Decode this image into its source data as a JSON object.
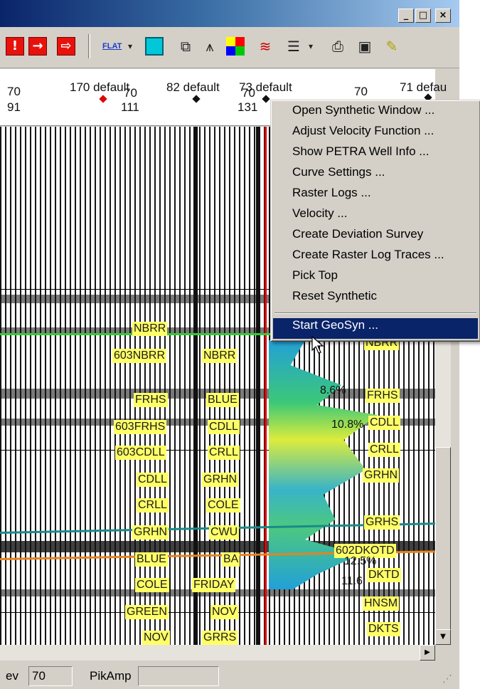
{
  "window": {
    "buttons": {
      "minimize": "_",
      "maximize": "□",
      "close": "×"
    }
  },
  "toolbar": {
    "flat_label": "FLAT",
    "icons": [
      "stop-red-icon",
      "arrow-right-red-icon",
      "arrow-right-red-icon",
      "flat-icon",
      "dropdown-icon",
      "cyan-square-icon",
      "windows-icon",
      "tower-icon",
      "color-palette-icon",
      "horizons-icon",
      "list-icon",
      "printer-icon",
      "save-icon",
      "ruler-icon"
    ]
  },
  "header": {
    "well_labels": [
      "170 default",
      "82 default",
      "73 default",
      "71 defau"
    ],
    "row1_numbers": [
      "70",
      "70",
      "70",
      "70"
    ],
    "row2_numbers": [
      "91",
      "111",
      "131"
    ]
  },
  "context_menu": {
    "items": [
      "Open Synthetic Window ...",
      "Adjust Velocity Function ...",
      "Show PETRA Well Info ...",
      "Curve Settings ...",
      "Raster Logs ...",
      "Velocity ...",
      "Create Deviation Survey",
      "Create Raster Log Traces ...",
      "Pick Top",
      "Reset Synthetic"
    ],
    "selected_item": "Start GeoSyn ..."
  },
  "formations": {
    "left_column": [
      "NBRR",
      "603NBRR",
      "FRHS",
      "603FRHS",
      "603CDLL",
      "CDLL",
      "CRLL",
      "GRHN",
      "BLUE",
      "COLE",
      "GREEN",
      "NOV"
    ],
    "middle_column": [
      "NBRR",
      "BLUE",
      "CDLL",
      "CRLL",
      "GRHN",
      "COLE",
      "CWU",
      "BA",
      "FRIDAY",
      "NOV",
      "GRRS"
    ],
    "right_column": [
      "NBRR",
      "FRHS",
      "CDLL",
      "CRLL",
      "GRHN",
      "GRHS",
      "602DKOTD",
      "DKTD",
      "HNSM",
      "DKTS"
    ]
  },
  "log_annotations": [
    "8.6%",
    "10.8%",
    "12.5%",
    "11.6"
  ],
  "statusbar": {
    "elev_label": "ev",
    "elev_value": "70",
    "pikamp_label": "PikAmp",
    "pikamp_value": ""
  },
  "colors": {
    "menu_highlight": "#0a246a",
    "horizon_green": "#33cc33",
    "horizon_teal": "#1a8a8a",
    "horizon_orange": "#e8821e",
    "well_line": "#e00000",
    "formation_label_bg": "#ffff66"
  }
}
